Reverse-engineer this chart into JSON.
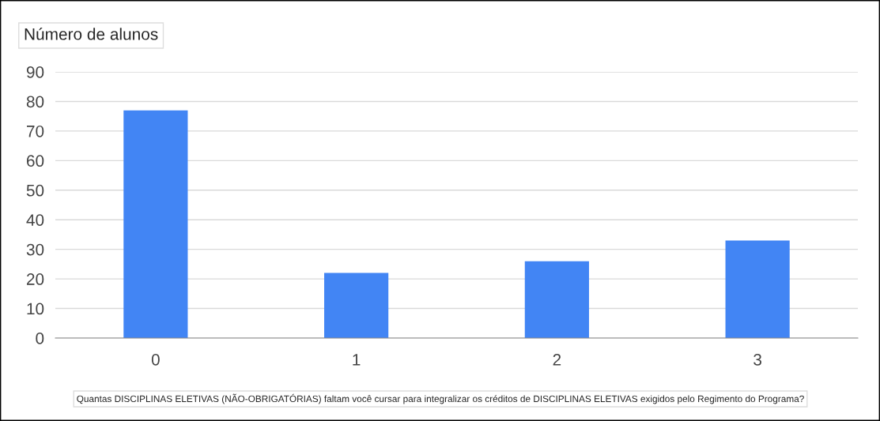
{
  "chart_data": {
    "type": "bar",
    "ylabel": "Número de alunos",
    "xlabel": "Quantas DISCIPLINAS ELETIVAS (NÃO-OBRIGATÓRIAS) faltam você cursar para integralizar os créditos de DISCIPLINAS ELETIVAS exigidos pelo Regimento do Programa?",
    "categories": [
      "0",
      "1",
      "2",
      "3"
    ],
    "values": [
      77,
      22,
      26,
      33
    ],
    "color": "#4285f4",
    "ylim": [
      0,
      90
    ],
    "yticks": [
      0,
      10,
      20,
      30,
      40,
      50,
      60,
      70,
      80,
      90
    ],
    "grid": "y"
  }
}
